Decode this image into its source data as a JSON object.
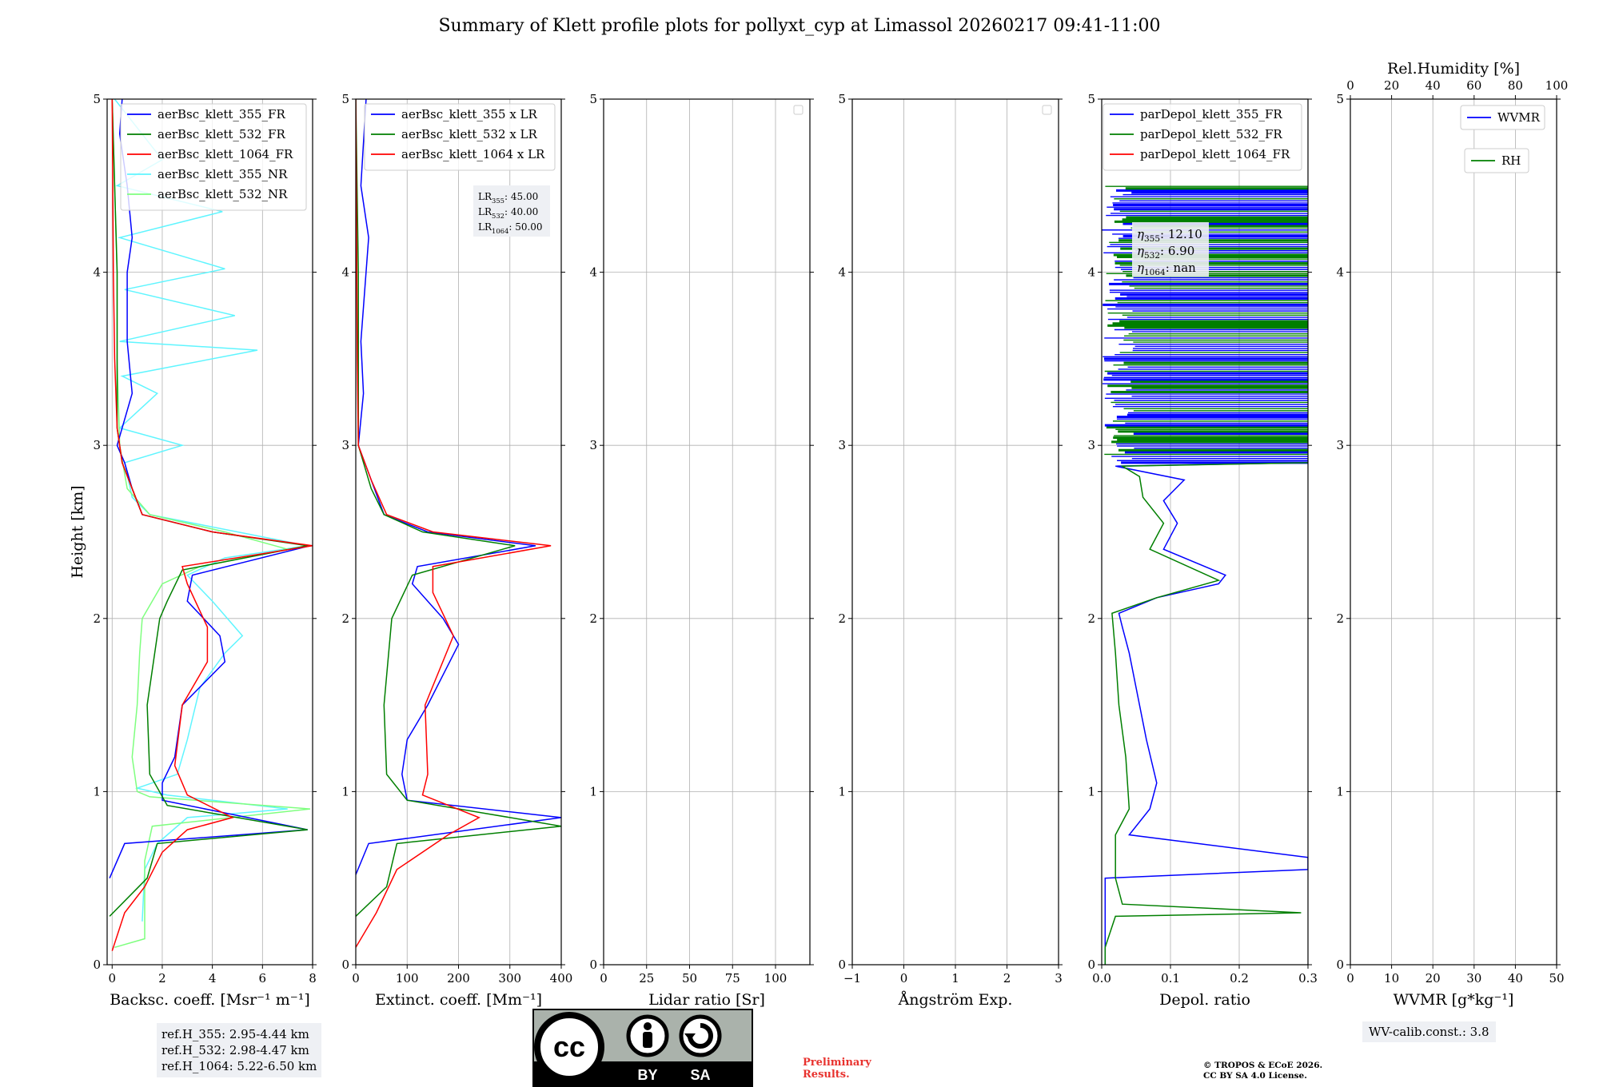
{
  "figure_title": "Summary of Klett profile plots for pollyxt_cyp at Limassol 20260217 09:41-11:00",
  "reference_heights": [
    "ref.H_355: 2.95-4.44 km",
    "ref.H_532: 2.98-4.47 km",
    "ref.H_1064: 5.22-6.50 km"
  ],
  "wv_calib": "WV-calib.const.: 3.8",
  "preliminary": [
    "Preliminary",
    "Results."
  ],
  "copyright": [
    "© TROPOS & ECoE 2026.",
    "CC BY SA 4.0 License."
  ],
  "cc_badge": {
    "by": "BY",
    "sa": "SA",
    "cc": "cc"
  },
  "lidar_ratios": [
    "LR355: 45.00",
    "LR532: 40.00",
    "LR1064: 50.00"
  ],
  "eta_values": [
    "η355: 12.10",
    "η532: 6.90",
    "η1064: nan"
  ],
  "colors": {
    "blue": "#0000ff",
    "green": "#007f00",
    "red": "#ff0000",
    "cyan": "#5ff5ff",
    "lightgreen": "#7fff7f"
  },
  "chart_data": [
    {
      "type": "line",
      "id": "bsc",
      "xlabel": "Backsc. coeff. [Msr⁻¹ m⁻¹]",
      "ylabel": "Height [km]",
      "xlim": [
        -0.2,
        8
      ],
      "ylim": [
        0,
        5
      ],
      "xticks": [
        0,
        2,
        4,
        6,
        8
      ],
      "yticks": [
        0,
        1,
        2,
        3,
        4,
        5
      ],
      "legend": "top-right",
      "series": [
        {
          "name": "aerBsc_klett_355_NR",
          "color": "#5ff5ff",
          "points": [
            [
              1.2,
              0.25
            ],
            [
              1.3,
              0.55
            ],
            [
              1.8,
              0.7
            ],
            [
              3.0,
              0.85
            ],
            [
              7.0,
              0.9
            ],
            [
              2.2,
              0.98
            ],
            [
              1.0,
              1.02
            ],
            [
              2.6,
              1.1
            ],
            [
              3.0,
              1.3
            ],
            [
              3.5,
              1.6
            ],
            [
              4.5,
              1.8
            ],
            [
              5.2,
              1.9
            ],
            [
              4.0,
              2.1
            ],
            [
              3.0,
              2.25
            ],
            [
              4.5,
              2.35
            ],
            [
              7.8,
              2.42
            ],
            [
              5.0,
              2.5
            ],
            [
              1.5,
              2.6
            ],
            [
              0.8,
              2.7
            ],
            [
              0.5,
              2.9
            ],
            [
              2.8,
              3.0
            ],
            [
              0.3,
              3.1
            ],
            [
              1.8,
              3.3
            ],
            [
              0.4,
              3.4
            ],
            [
              5.8,
              3.55
            ],
            [
              0.3,
              3.6
            ],
            [
              4.9,
              3.75
            ],
            [
              0.5,
              3.9
            ],
            [
              4.5,
              4.02
            ],
            [
              0.3,
              4.2
            ],
            [
              4.4,
              4.35
            ],
            [
              0.2,
              4.5
            ],
            [
              2.0,
              4.65
            ],
            [
              0.1,
              5.0
            ]
          ]
        },
        {
          "name": "aerBsc_klett_532_NR",
          "color": "#7fff7f",
          "points": [
            [
              0.1,
              0.1
            ],
            [
              1.3,
              0.15
            ],
            [
              1.3,
              0.6
            ],
            [
              1.6,
              0.8
            ],
            [
              7.9,
              0.9
            ],
            [
              1.5,
              0.97
            ],
            [
              1.0,
              1.0
            ],
            [
              0.8,
              1.2
            ],
            [
              1.0,
              1.5
            ],
            [
              1.1,
              1.8
            ],
            [
              1.2,
              2.0
            ],
            [
              2.0,
              2.2
            ],
            [
              3.5,
              2.3
            ],
            [
              7.0,
              2.4
            ],
            [
              4.5,
              2.5
            ],
            [
              1.5,
              2.6
            ],
            [
              0.6,
              2.75
            ],
            [
              0.3,
              3.0
            ],
            [
              0.2,
              3.5
            ],
            [
              0.2,
              4.0
            ],
            [
              0.1,
              4.5
            ],
            [
              0.0,
              5.0
            ]
          ]
        },
        {
          "name": "aerBsc_klett_355_FR",
          "color": "#0000ff",
          "points": [
            [
              -0.1,
              0.5
            ],
            [
              0.5,
              0.7
            ],
            [
              7.8,
              0.78
            ],
            [
              2.0,
              0.95
            ],
            [
              2.0,
              1.05
            ],
            [
              2.5,
              1.2
            ],
            [
              2.8,
              1.5
            ],
            [
              4.5,
              1.75
            ],
            [
              4.3,
              1.9
            ],
            [
              3.0,
              2.1
            ],
            [
              3.2,
              2.25
            ],
            [
              7.9,
              2.42
            ],
            [
              4.0,
              2.5
            ],
            [
              1.2,
              2.6
            ],
            [
              0.8,
              2.75
            ],
            [
              0.5,
              2.9
            ],
            [
              0.2,
              3.0
            ],
            [
              0.8,
              3.3
            ],
            [
              0.6,
              3.6
            ],
            [
              0.6,
              4.0
            ],
            [
              0.8,
              4.2
            ],
            [
              0.6,
              4.5
            ],
            [
              0.3,
              4.8
            ],
            [
              0.4,
              5.0
            ]
          ]
        },
        {
          "name": "aerBsc_klett_532_FR",
          "color": "#007f00",
          "points": [
            [
              -0.1,
              0.28
            ],
            [
              1.4,
              0.5
            ],
            [
              1.8,
              0.7
            ],
            [
              7.8,
              0.78
            ],
            [
              2.2,
              0.92
            ],
            [
              1.5,
              1.1
            ],
            [
              1.4,
              1.5
            ],
            [
              1.9,
              2.0
            ],
            [
              2.2,
              2.1
            ],
            [
              2.8,
              2.28
            ],
            [
              7.8,
              2.42
            ],
            [
              4.0,
              2.5
            ],
            [
              1.2,
              2.6
            ],
            [
              0.8,
              2.75
            ],
            [
              0.4,
              2.9
            ],
            [
              0.2,
              3.1
            ],
            [
              0.2,
              3.5
            ],
            [
              0.2,
              4.0
            ],
            [
              0.1,
              4.5
            ],
            [
              0.0,
              5.0
            ]
          ]
        },
        {
          "name": "aerBsc_klett_1064_FR",
          "color": "#ff0000",
          "points": [
            [
              0.0,
              0.08
            ],
            [
              0.5,
              0.3
            ],
            [
              1.3,
              0.45
            ],
            [
              2.0,
              0.65
            ],
            [
              3.0,
              0.78
            ],
            [
              4.8,
              0.85
            ],
            [
              3.0,
              0.98
            ],
            [
              2.5,
              1.15
            ],
            [
              2.8,
              1.5
            ],
            [
              3.8,
              1.75
            ],
            [
              3.8,
              1.95
            ],
            [
              3.0,
              2.2
            ],
            [
              2.8,
              2.3
            ],
            [
              8.0,
              2.42
            ],
            [
              4.0,
              2.5
            ],
            [
              1.2,
              2.6
            ],
            [
              0.8,
              2.75
            ],
            [
              0.4,
              2.9
            ],
            [
              0.2,
              3.1
            ],
            [
              0.1,
              3.5
            ],
            [
              0.05,
              4.0
            ],
            [
              0.0,
              5.0
            ]
          ]
        }
      ]
    },
    {
      "type": "line",
      "id": "ext",
      "xlabel": "Extinct. coeff. [Mm⁻¹]",
      "xlim": [
        0,
        400
      ],
      "ylim": [
        0,
        5
      ],
      "xticks": [
        0,
        100,
        200,
        300,
        400
      ],
      "yticks": [
        0,
        1,
        2,
        3,
        4,
        5
      ],
      "legend": "top-right",
      "series": [
        {
          "name": "aerBsc_klett_355 x LR",
          "color": "#0000ff",
          "points": [
            [
              0,
              0.52
            ],
            [
              25,
              0.7
            ],
            [
              400,
              0.85
            ],
            [
              100,
              0.95
            ],
            [
              90,
              1.1
            ],
            [
              100,
              1.3
            ],
            [
              140,
              1.5
            ],
            [
              200,
              1.85
            ],
            [
              170,
              2.0
            ],
            [
              110,
              2.2
            ],
            [
              120,
              2.3
            ],
            [
              350,
              2.42
            ],
            [
              140,
              2.5
            ],
            [
              55,
              2.6
            ],
            [
              30,
              2.8
            ],
            [
              5,
              3.0
            ],
            [
              15,
              3.3
            ],
            [
              10,
              3.6
            ],
            [
              25,
              4.2
            ],
            [
              10,
              4.5
            ],
            [
              20,
              5.0
            ]
          ]
        },
        {
          "name": "aerBsc_klett_532 x LR",
          "color": "#007f00",
          "points": [
            [
              0,
              0.28
            ],
            [
              60,
              0.45
            ],
            [
              80,
              0.7
            ],
            [
              400,
              0.8
            ],
            [
              100,
              0.95
            ],
            [
              60,
              1.1
            ],
            [
              55,
              1.5
            ],
            [
              70,
              2.0
            ],
            [
              110,
              2.25
            ],
            [
              310,
              2.42
            ],
            [
              130,
              2.5
            ],
            [
              55,
              2.6
            ],
            [
              30,
              2.75
            ],
            [
              5,
              3.0
            ],
            [
              5,
              3.5
            ],
            [
              5,
              4.0
            ],
            [
              0,
              5.0
            ]
          ]
        },
        {
          "name": "aerBsc_klett_1064 x LR",
          "color": "#ff0000",
          "points": [
            [
              0,
              0.1
            ],
            [
              40,
              0.3
            ],
            [
              80,
              0.55
            ],
            [
              180,
              0.75
            ],
            [
              240,
              0.85
            ],
            [
              130,
              0.98
            ],
            [
              140,
              1.1
            ],
            [
              135,
              1.5
            ],
            [
              190,
              1.9
            ],
            [
              150,
              2.15
            ],
            [
              150,
              2.3
            ],
            [
              380,
              2.42
            ],
            [
              150,
              2.5
            ],
            [
              60,
              2.6
            ],
            [
              30,
              2.8
            ],
            [
              5,
              3.0
            ],
            [
              3,
              3.5
            ],
            [
              2,
              4.0
            ],
            [
              0,
              5.0
            ]
          ]
        }
      ]
    },
    {
      "type": "line",
      "id": "lr",
      "xlabel": "Lidar ratio [Sr]",
      "xlim": [
        0,
        120
      ],
      "ylim": [
        0,
        5
      ],
      "xticks": [
        0,
        25,
        50,
        75,
        100
      ],
      "yticks": [
        0,
        1,
        2,
        3,
        4,
        5
      ],
      "series": []
    },
    {
      "type": "line",
      "id": "ang",
      "xlabel": "Ångström Exp.",
      "xlim": [
        -1,
        3
      ],
      "ylim": [
        0,
        5
      ],
      "xticks": [
        -1,
        0,
        1,
        2,
        3
      ],
      "xticklabels": [
        "−1",
        "0",
        "1",
        "2",
        "3"
      ],
      "yticks": [
        0,
        1,
        2,
        3,
        4,
        5
      ],
      "series": []
    },
    {
      "type": "line",
      "id": "depol",
      "xlabel": "Depol. ratio",
      "xlim": [
        0,
        0.3
      ],
      "ylim": [
        0,
        5
      ],
      "xticks": [
        0,
        0.1,
        0.2,
        0.3
      ],
      "xticklabels": [
        "0.0",
        "0.1",
        "0.2",
        "0.3"
      ],
      "yticks": [
        0,
        1,
        2,
        3,
        4,
        5
      ],
      "legend": "top-right",
      "series": [
        {
          "name": "parDepol_klett_355_FR",
          "color": "#0000ff",
          "points": [
            [
              0.005,
              0.0
            ],
            [
              0.005,
              0.5
            ],
            [
              0.3,
              0.55
            ],
            [
              0.3,
              0.62
            ],
            [
              0.04,
              0.75
            ],
            [
              0.07,
              0.9
            ],
            [
              0.08,
              1.05
            ],
            [
              0.065,
              1.3
            ],
            [
              0.05,
              1.6
            ],
            [
              0.04,
              1.8
            ],
            [
              0.03,
              1.95
            ],
            [
              0.025,
              2.03
            ],
            [
              0.08,
              2.12
            ],
            [
              0.17,
              2.2
            ],
            [
              0.18,
              2.25
            ],
            [
              0.09,
              2.4
            ],
            [
              0.11,
              2.55
            ],
            [
              0.09,
              2.68
            ],
            [
              0.12,
              2.8
            ],
            [
              0.02,
              2.88
            ],
            [
              0.3,
              2.9
            ]
          ]
        },
        {
          "name": "parDepol_klett_532_FR",
          "color": "#007f00",
          "points": [
            [
              0.005,
              0.0
            ],
            [
              0.005,
              0.1
            ],
            [
              0.02,
              0.28
            ],
            [
              0.29,
              0.3
            ],
            [
              0.03,
              0.35
            ],
            [
              0.02,
              0.5
            ],
            [
              0.02,
              0.75
            ],
            [
              0.04,
              0.9
            ],
            [
              0.035,
              1.2
            ],
            [
              0.025,
              1.5
            ],
            [
              0.02,
              1.8
            ],
            [
              0.015,
              2.03
            ],
            [
              0.08,
              2.12
            ],
            [
              0.17,
              2.22
            ],
            [
              0.07,
              2.4
            ],
            [
              0.09,
              2.55
            ],
            [
              0.06,
              2.7
            ],
            [
              0.055,
              2.82
            ],
            [
              0.03,
              2.88
            ],
            [
              0.3,
              2.9
            ]
          ]
        },
        {
          "name": "parDepol_klett_1064_FR",
          "color": "#ff0000",
          "points": []
        }
      ],
      "noise_range_km": [
        2.9,
        4.5
      ]
    },
    {
      "type": "line",
      "id": "wv",
      "xlabel": "WVMR [g*kg⁻¹]",
      "top_xlabel": "Rel.Humidity [%]",
      "xlim": [
        0,
        50
      ],
      "ylim": [
        0,
        5
      ],
      "xticks": [
        0,
        10,
        20,
        30,
        40,
        50
      ],
      "top_xticks": [
        0,
        20,
        40,
        60,
        80,
        100
      ],
      "yticks": [
        0,
        1,
        2,
        3,
        4,
        5
      ],
      "series": [
        {
          "name": "WVMR",
          "color": "#0000ff",
          "points": []
        },
        {
          "name": "RH",
          "color": "#007f00",
          "points": []
        }
      ]
    }
  ]
}
